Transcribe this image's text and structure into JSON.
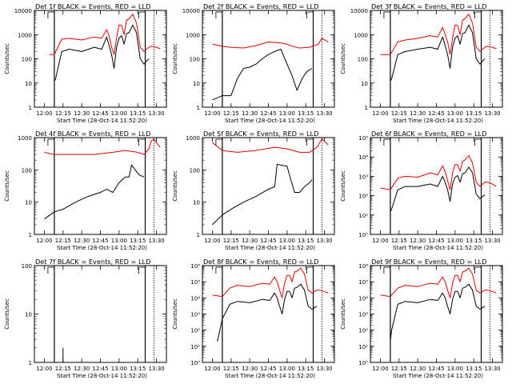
{
  "figure": {
    "common_xlabel": "Start Time (28-Oct-14 11:52:20)",
    "ylabel": "Counts/sec",
    "x_tick_labels": [
      "12:00",
      "12:15",
      "12:30",
      "12:45",
      "13:00",
      "13:15",
      "13:30"
    ]
  },
  "colors": {
    "events": "#000000",
    "lld": "#dd0000",
    "axes": "#000000"
  },
  "chart_data": [
    {
      "type": "line",
      "panel": 1,
      "title": "Det 1f BLACK = Events, RED = LLD",
      "xlabel": "Start Time (28-Oct-14 11:52:20)",
      "ylabel": "Counts/sec",
      "yscale": "log",
      "ylim": [
        1,
        10000
      ],
      "ytick_labels": [
        "1",
        "10",
        "100",
        "1000",
        "10000"
      ],
      "x_minutes": [
        0,
        8,
        14,
        20,
        30,
        40,
        46,
        50,
        52,
        54,
        56,
        58,
        60,
        62,
        64,
        66,
        68,
        71,
        74,
        77,
        80,
        82,
        84,
        86,
        90,
        93
      ],
      "markers": {
        "solid": [
          8,
          81
        ],
        "dotted": [
          88
        ]
      },
      "series": [
        {
          "name": "LLD",
          "color": "red",
          "x": [
            4,
            8,
            14,
            20,
            30,
            40,
            46,
            50,
            52,
            54,
            56,
            58,
            60,
            62,
            64,
            66,
            68,
            71,
            74,
            77,
            80,
            82,
            84,
            86,
            90,
            93
          ],
          "y": [
            150,
            150,
            650,
            700,
            600,
            800,
            700,
            1600,
            900,
            300,
            150,
            700,
            2500,
            2400,
            1000,
            4000,
            4500,
            7000,
            3000,
            300,
            200,
            250,
            300,
            330,
            300,
            260
          ]
        },
        {
          "name": "Events",
          "color": "black",
          "x": [
            8,
            9,
            14,
            20,
            30,
            40,
            46,
            50,
            52,
            54,
            56,
            58,
            60,
            62,
            64,
            66,
            68,
            71,
            74,
            77,
            80,
            82,
            84
          ],
          "y": [
            12,
            15,
            200,
            250,
            200,
            300,
            250,
            800,
            350,
            150,
            40,
            300,
            700,
            900,
            400,
            1100,
            1200,
            2500,
            1200,
            100,
            60,
            80,
            100
          ]
        }
      ]
    },
    {
      "type": "line",
      "panel": 2,
      "title": "Det 2f BLACK = Events, RED = LLD",
      "xlabel": "Start Time (28-Oct-14 11:52:20)",
      "ylabel": "Counts/sec",
      "yscale": "log",
      "ylim": [
        1,
        10000
      ],
      "ytick_labels": [
        "1",
        "10",
        "100",
        "1000",
        "10000"
      ],
      "markers": {
        "solid": [
          8,
          81
        ],
        "dotted": [
          88
        ]
      },
      "series": [
        {
          "name": "LLD",
          "color": "red",
          "x": [
            0,
            8,
            15,
            25,
            35,
            45,
            55,
            60,
            65,
            70,
            78,
            85,
            88,
            93
          ],
          "y": [
            400,
            330,
            300,
            280,
            350,
            500,
            450,
            400,
            320,
            280,
            300,
            400,
            700,
            500
          ]
        },
        {
          "name": "Events",
          "color": "black",
          "x": [
            0,
            8,
            15,
            20,
            25,
            30,
            35,
            40,
            45,
            50,
            55,
            60,
            64,
            68,
            72,
            76,
            80
          ],
          "y": [
            2,
            3,
            3,
            15,
            40,
            45,
            60,
            100,
            150,
            200,
            250,
            60,
            20,
            5,
            15,
            30,
            40
          ]
        }
      ]
    },
    {
      "type": "line",
      "panel": 3,
      "title": "Det 3f BLACK = Events, RED = LLD",
      "xlabel": "Start Time (28-Oct-14 11:52:20)",
      "ylabel": "Counts/sec",
      "yscale": "log",
      "ylim": [
        1,
        10000
      ],
      "ytick_labels": [
        "1",
        "10",
        "100",
        "1000",
        "10000"
      ],
      "markers": {
        "solid": [
          8,
          81
        ],
        "dotted": [
          88
        ]
      },
      "series": [
        {
          "name": "LLD",
          "color": "red",
          "x": [
            0,
            8,
            14,
            20,
            30,
            40,
            46,
            50,
            52,
            54,
            56,
            58,
            60,
            62,
            64,
            66,
            68,
            71,
            74,
            77,
            80,
            82,
            84,
            86,
            90,
            93
          ],
          "y": [
            150,
            150,
            500,
            600,
            700,
            900,
            800,
            2000,
            1000,
            500,
            150,
            700,
            2500,
            2400,
            1000,
            4000,
            4500,
            7000,
            3000,
            300,
            200,
            250,
            300,
            330,
            300,
            260
          ]
        },
        {
          "name": "Events",
          "color": "black",
          "x": [
            8,
            9,
            14,
            20,
            30,
            40,
            46,
            50,
            52,
            54,
            56,
            58,
            60,
            62,
            64,
            66,
            68,
            71,
            74,
            77,
            80,
            82,
            84
          ],
          "y": [
            12,
            15,
            150,
            200,
            250,
            300,
            250,
            800,
            350,
            150,
            40,
            300,
            700,
            900,
            400,
            1100,
            1200,
            2500,
            1200,
            100,
            60,
            80,
            100
          ]
        }
      ]
    },
    {
      "type": "line",
      "panel": 4,
      "title": "Det 4f BLACK = Events, RED = LLD",
      "xlabel": "Start Time (28-Oct-14 11:52:20)",
      "ylabel": "Counts/sec",
      "yscale": "log",
      "ylim": [
        1,
        1000
      ],
      "ytick_labels": [
        "1",
        "10",
        "100",
        "1000"
      ],
      "markers": {
        "solid": [
          8,
          81
        ],
        "dotted": [
          88
        ]
      },
      "series": [
        {
          "name": "LLD",
          "color": "red",
          "x": [
            0,
            8,
            20,
            40,
            55,
            65,
            75,
            80,
            84,
            86,
            88,
            90,
            93
          ],
          "y": [
            350,
            300,
            300,
            300,
            350,
            400,
            350,
            300,
            450,
            800,
            900,
            700,
            500
          ]
        },
        {
          "name": "Events",
          "color": "black",
          "x": [
            0,
            8,
            15,
            25,
            35,
            45,
            50,
            55,
            60,
            65,
            68,
            70,
            73,
            76,
            80
          ],
          "y": [
            3,
            5,
            6,
            10,
            15,
            20,
            25,
            20,
            40,
            60,
            60,
            140,
            100,
            70,
            60
          ]
        }
      ]
    },
    {
      "type": "line",
      "panel": 5,
      "title": "Det 5f BLACK = Events, RED = LLD",
      "xlabel": "Start Time (28-Oct-14 11:52:20)",
      "ylabel": "Counts/sec",
      "yscale": "log",
      "ylim": [
        1,
        1000
      ],
      "ytick_labels": [
        "1",
        "10",
        "100",
        "1000"
      ],
      "markers": {
        "solid": [
          8,
          81
        ],
        "dotted": [
          88
        ]
      },
      "series": [
        {
          "name": "LLD",
          "color": "red",
          "x": [
            0,
            8,
            20,
            35,
            50,
            60,
            70,
            78,
            84,
            88,
            93
          ],
          "y": [
            700,
            400,
            350,
            400,
            500,
            450,
            350,
            350,
            500,
            900,
            600
          ]
        },
        {
          "name": "Events",
          "color": "black",
          "x": [
            0,
            8,
            15,
            25,
            35,
            45,
            50,
            52,
            55,
            60,
            63,
            66,
            70,
            74,
            78,
            80
          ],
          "y": [
            2,
            4,
            6,
            10,
            15,
            25,
            30,
            150,
            140,
            130,
            50,
            20,
            20,
            30,
            40,
            50
          ]
        }
      ]
    },
    {
      "type": "line",
      "panel": 6,
      "title": "Det 6f BLACK = Events, RED = LLD",
      "xlabel": "Start Time (28-Oct-14 11:52:20)",
      "ylabel": "Counts/sec",
      "yscale": "log",
      "ylim": [
        1,
        100000
      ],
      "ytick_labels": [
        "10⁰",
        "10¹",
        "10²",
        "10³",
        "10⁴",
        "10⁵"
      ],
      "markers": {
        "solid": [
          8,
          81
        ],
        "dotted": [
          88
        ]
      },
      "series": [
        {
          "name": "LLD",
          "color": "red",
          "x": [
            0,
            8,
            14,
            20,
            30,
            40,
            46,
            50,
            52,
            54,
            56,
            58,
            60,
            62,
            64,
            66,
            68,
            71,
            74,
            77,
            80,
            82,
            84,
            86,
            90,
            93
          ],
          "y": [
            250,
            200,
            800,
            1000,
            900,
            1500,
            1200,
            3500,
            1800,
            600,
            200,
            1500,
            4000,
            4000,
            1800,
            6000,
            7000,
            12000,
            5000,
            500,
            300,
            400,
            500,
            500,
            400,
            300
          ]
        },
        {
          "name": "Events",
          "color": "black",
          "x": [
            8,
            9,
            14,
            20,
            30,
            40,
            46,
            50,
            52,
            54,
            56,
            58,
            60,
            62,
            64,
            66,
            68,
            71,
            74,
            77,
            80,
            82,
            84
          ],
          "y": [
            15,
            20,
            200,
            300,
            300,
            400,
            300,
            1000,
            500,
            200,
            50,
            400,
            900,
            1100,
            500,
            1400,
            1500,
            3000,
            1500,
            120,
            70,
            90,
            110
          ]
        }
      ]
    },
    {
      "type": "line",
      "panel": 7,
      "title": "Det 7f BLACK = Events, RED = LLD",
      "xlabel": "Start Time (28-Oct-14 11:52:20)",
      "ylabel": "Counts/sec",
      "yscale": "log",
      "ylim": [
        1,
        100
      ],
      "ytick_labels": [
        "1",
        "10",
        "100"
      ],
      "markers": {
        "solid": [
          8,
          81
        ],
        "dotted": [
          88
        ]
      },
      "series": [
        {
          "name": "Events",
          "color": "black",
          "x": [
            15,
            15
          ],
          "y": [
            1,
            2
          ]
        }
      ]
    },
    {
      "type": "line",
      "panel": 8,
      "title": "Det 8f BLACK = Events, RED = LLD",
      "xlabel": "Start Time (28-Oct-14 11:52:20)",
      "ylabel": "Counts/sec",
      "yscale": "log",
      "ylim": [
        1,
        1000000
      ],
      "ytick_labels": [
        "10⁰",
        "10¹",
        "10²",
        "10³",
        "10⁴",
        "10⁵",
        "10⁶"
      ],
      "markers": {
        "solid": [
          8,
          81
        ],
        "dotted": [
          88
        ]
      },
      "series": [
        {
          "name": "LLD",
          "color": "red",
          "x": [
            0,
            8,
            14,
            20,
            30,
            40,
            46,
            50,
            52,
            54,
            56,
            58,
            60,
            62,
            64,
            66,
            68,
            71,
            74,
            77,
            80,
            82,
            84,
            86,
            90,
            93
          ],
          "y": [
            15000,
            12000,
            40000,
            60000,
            50000,
            80000,
            70000,
            200000,
            100000,
            30000,
            10000,
            80000,
            250000,
            250000,
            100000,
            400000,
            450000,
            700000,
            300000,
            30000,
            20000,
            25000,
            30000,
            30000,
            25000,
            20000
          ]
        },
        {
          "name": "Events",
          "color": "black",
          "x": [
            4,
            8,
            14,
            20,
            30,
            40,
            46,
            50,
            52,
            54,
            56,
            58,
            60,
            62,
            64,
            66,
            68,
            71,
            74,
            77,
            80,
            82,
            84
          ],
          "y": [
            20,
            500,
            4000,
            6000,
            5000,
            8000,
            7000,
            20000,
            10000,
            3000,
            1000,
            8000,
            25000,
            25000,
            10000,
            40000,
            45000,
            70000,
            30000,
            3000,
            2000,
            2500,
            3000
          ]
        }
      ]
    },
    {
      "type": "line",
      "panel": 9,
      "title": "Det 9f BLACK = Events, RED = LLD",
      "xlabel": "Start Time (28-Oct-14 11:52:20)",
      "ylabel": "Counts/sec",
      "yscale": "log",
      "ylim": [
        1,
        1000000
      ],
      "ytick_labels": [
        "10⁰",
        "10¹",
        "10²",
        "10³",
        "10⁴",
        "10⁵",
        "10⁶"
      ],
      "markers": {
        "solid": [
          8,
          81
        ],
        "dotted": [
          88
        ]
      },
      "series": [
        {
          "name": "LLD",
          "color": "red",
          "x": [
            0,
            8,
            14,
            20,
            30,
            40,
            46,
            50,
            52,
            54,
            56,
            58,
            60,
            62,
            64,
            66,
            68,
            71,
            74,
            77,
            80,
            82,
            84,
            86,
            90,
            93
          ],
          "y": [
            15000,
            12000,
            40000,
            60000,
            50000,
            80000,
            70000,
            200000,
            100000,
            30000,
            10000,
            80000,
            250000,
            250000,
            100000,
            400000,
            450000,
            700000,
            300000,
            30000,
            20000,
            25000,
            30000,
            30000,
            25000,
            20000
          ]
        },
        {
          "name": "Events",
          "color": "black",
          "x": [
            8,
            9,
            14,
            20,
            30,
            40,
            46,
            50,
            52,
            54,
            56,
            58,
            60,
            62,
            64,
            66,
            68,
            71,
            74,
            77,
            80,
            82,
            84
          ],
          "y": [
            20,
            100,
            4000,
            6000,
            5000,
            8000,
            7000,
            20000,
            10000,
            3000,
            1000,
            8000,
            25000,
            25000,
            10000,
            40000,
            45000,
            70000,
            30000,
            3000,
            2000,
            2500,
            3000
          ]
        }
      ]
    }
  ]
}
